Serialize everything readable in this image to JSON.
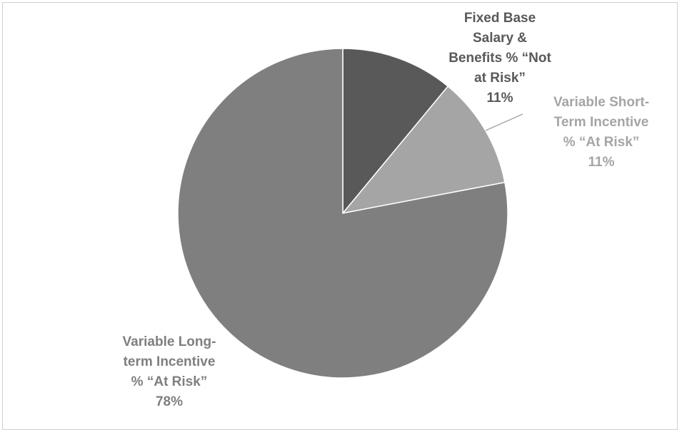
{
  "chart_data": {
    "type": "pie",
    "title": "",
    "slices": [
      {
        "name": "Fixed Base Salary & Benefits % “Not at Risk”",
        "label_lines": [
          "Fixed Base",
          "Salary &",
          "Benefits % “Not",
          "at Risk”"
        ],
        "value": 11,
        "value_label": "11%",
        "color": "#595959",
        "label_color": "#595959"
      },
      {
        "name": "Variable Short-Term Incentive % “At Risk”",
        "label_lines": [
          "Variable Short-",
          "Term Incentive",
          "% “At Risk”"
        ],
        "value": 11,
        "value_label": "11%",
        "color": "#a5a5a5",
        "label_color": "#a5a5a5"
      },
      {
        "name": "Variable Long-term Incentive % “At Risk”",
        "label_lines": [
          "Variable Long-",
          "term Incentive",
          "% “At Risk”"
        ],
        "value": 78,
        "value_label": "78%",
        "color": "#7f7f7f",
        "label_color": "#7f7f7f"
      }
    ],
    "start_angle_deg": 0,
    "direction": "clockwise",
    "legend": "none",
    "data_labels": "outside with leader line"
  }
}
